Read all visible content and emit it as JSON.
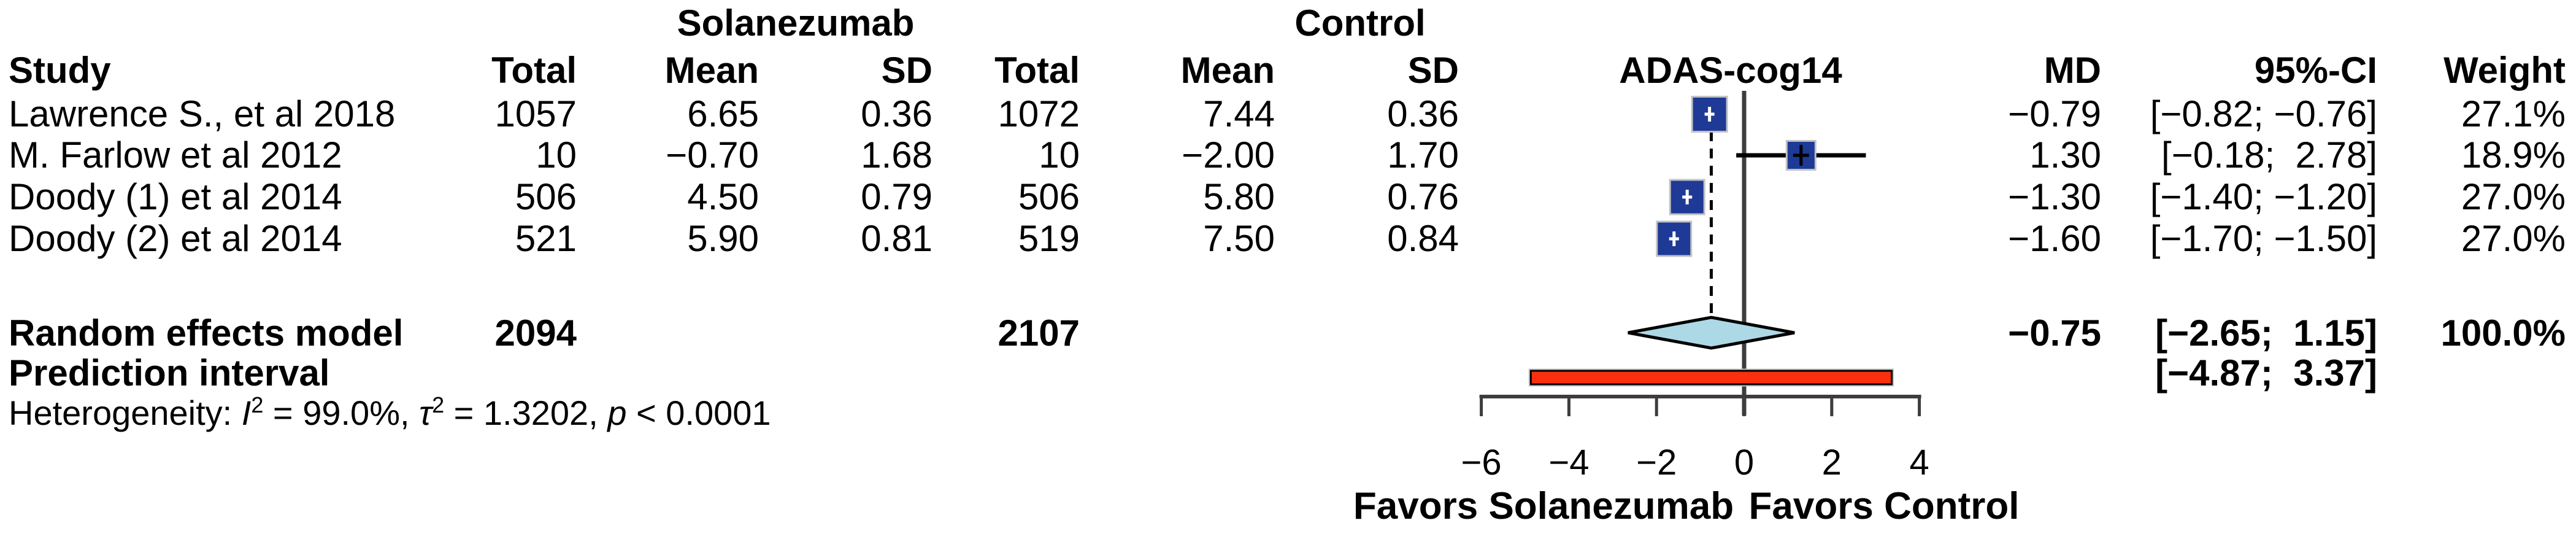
{
  "groups": {
    "treatment_label": "Solanezumab",
    "control_label": "Control"
  },
  "headers": {
    "study": "Study",
    "total": "Total",
    "mean": "Mean",
    "sd": "SD",
    "outcome": "ADAS-cog14",
    "md": "MD",
    "ci": "95%-CI",
    "weight": "Weight"
  },
  "rows": [
    {
      "study": "Lawrence S., et al 2018",
      "treat_total": "1057",
      "treat_mean": "6.65",
      "treat_sd": "0.36",
      "ctrl_total": "1072",
      "ctrl_mean": "7.44",
      "ctrl_sd": "0.36",
      "md": "−0.79",
      "ci": "[−0.82; −0.76]",
      "weight": "27.1%"
    },
    {
      "study": "M. Farlow et al 2012",
      "treat_total": "10",
      "treat_mean": "−0.70",
      "treat_sd": "1.68",
      "ctrl_total": "10",
      "ctrl_mean": "−2.00",
      "ctrl_sd": "1.70",
      "md": "1.30",
      "ci": "[−0.18;  2.78]",
      "weight": "18.9%"
    },
    {
      "study": "Doody (1) et al 2014",
      "treat_total": "506",
      "treat_mean": "4.50",
      "treat_sd": "0.79",
      "ctrl_total": "506",
      "ctrl_mean": "5.80",
      "ctrl_sd": "0.76",
      "md": "−1.30",
      "ci": "[−1.40; −1.20]",
      "weight": "27.0%"
    },
    {
      "study": "Doody (2) et al 2014",
      "treat_total": "521",
      "treat_mean": "5.90",
      "treat_sd": "0.81",
      "ctrl_total": "519",
      "ctrl_mean": "7.50",
      "ctrl_sd": "0.84",
      "md": "−1.60",
      "ci": "[−1.70; −1.50]",
      "weight": "27.0%"
    }
  ],
  "summary": {
    "random_label": "Random effects model",
    "random_treat_total": "2094",
    "random_ctrl_total": "2107",
    "random_md": "−0.75",
    "random_ci": "[−2.65;  1.15]",
    "random_weight": "100.0%",
    "prediction_label": "Prediction interval",
    "prediction_ci": "[−4.87;  3.37]",
    "het_prefix": "Heterogeneity: ",
    "het_i": "I",
    "het_i_exp": "2",
    "het_seg1": " = 99.0%, ",
    "het_tau": "τ",
    "het_tau_exp": "2",
    "het_seg2": " = 1.3202, ",
    "het_p": "p",
    "het_seg3": " < 0.0001"
  },
  "axis": {
    "tick_labels": [
      "−6",
      "−4",
      "−2",
      "0",
      "2",
      "4"
    ],
    "favors_left": "Favors Solanezumab",
    "favors_right": "Favors Control"
  },
  "chart_data": {
    "type": "forest",
    "outcome": "ADAS-cog14",
    "effect_measure": "MD",
    "xlim": [
      -6,
      4
    ],
    "ticks": [
      -6,
      -4,
      -2,
      0,
      2,
      4
    ],
    "studies": [
      {
        "name": "Lawrence S., et al 2018",
        "treatment": {
          "total": 1057,
          "mean": 6.65,
          "sd": 0.36
        },
        "control": {
          "total": 1072,
          "mean": 7.44,
          "sd": 0.36
        },
        "md": -0.79,
        "ci": [
          -0.82,
          -0.76
        ],
        "weight_pct": 27.1
      },
      {
        "name": "M. Farlow et al 2012",
        "treatment": {
          "total": 10,
          "mean": -0.7,
          "sd": 1.68
        },
        "control": {
          "total": 10,
          "mean": -2.0,
          "sd": 1.7
        },
        "md": 1.3,
        "ci": [
          -0.18,
          2.78
        ],
        "weight_pct": 18.9
      },
      {
        "name": "Doody (1) et al 2014",
        "treatment": {
          "total": 506,
          "mean": 4.5,
          "sd": 0.79
        },
        "control": {
          "total": 506,
          "mean": 5.8,
          "sd": 0.76
        },
        "md": -1.3,
        "ci": [
          -1.4,
          -1.2
        ],
        "weight_pct": 27.0
      },
      {
        "name": "Doody (2) et al 2014",
        "treatment": {
          "total": 521,
          "mean": 5.9,
          "sd": 0.81
        },
        "control": {
          "total": 519,
          "mean": 7.5,
          "sd": 0.84
        },
        "md": -1.6,
        "ci": [
          -1.7,
          -1.5
        ],
        "weight_pct": 27.0
      }
    ],
    "random_effects": {
      "total_treatment": 2094,
      "total_control": 2107,
      "md": -0.75,
      "ci": [
        -2.65,
        1.15
      ],
      "weight_pct": 100.0
    },
    "prediction_interval": [
      -4.87,
      3.37
    ],
    "heterogeneity": {
      "I2_pct": 99.0,
      "tau2": 1.3202,
      "p": "< 0.0001"
    },
    "legend_position": "none",
    "grid": false
  },
  "colors": {
    "square": "#1e3a96",
    "square_rim": "#c2c2c2",
    "diamond": "#add8e6",
    "prediction_bar": "#fa2f0e",
    "axis_line": "#3d3d3d",
    "ci_line": "#000000"
  }
}
